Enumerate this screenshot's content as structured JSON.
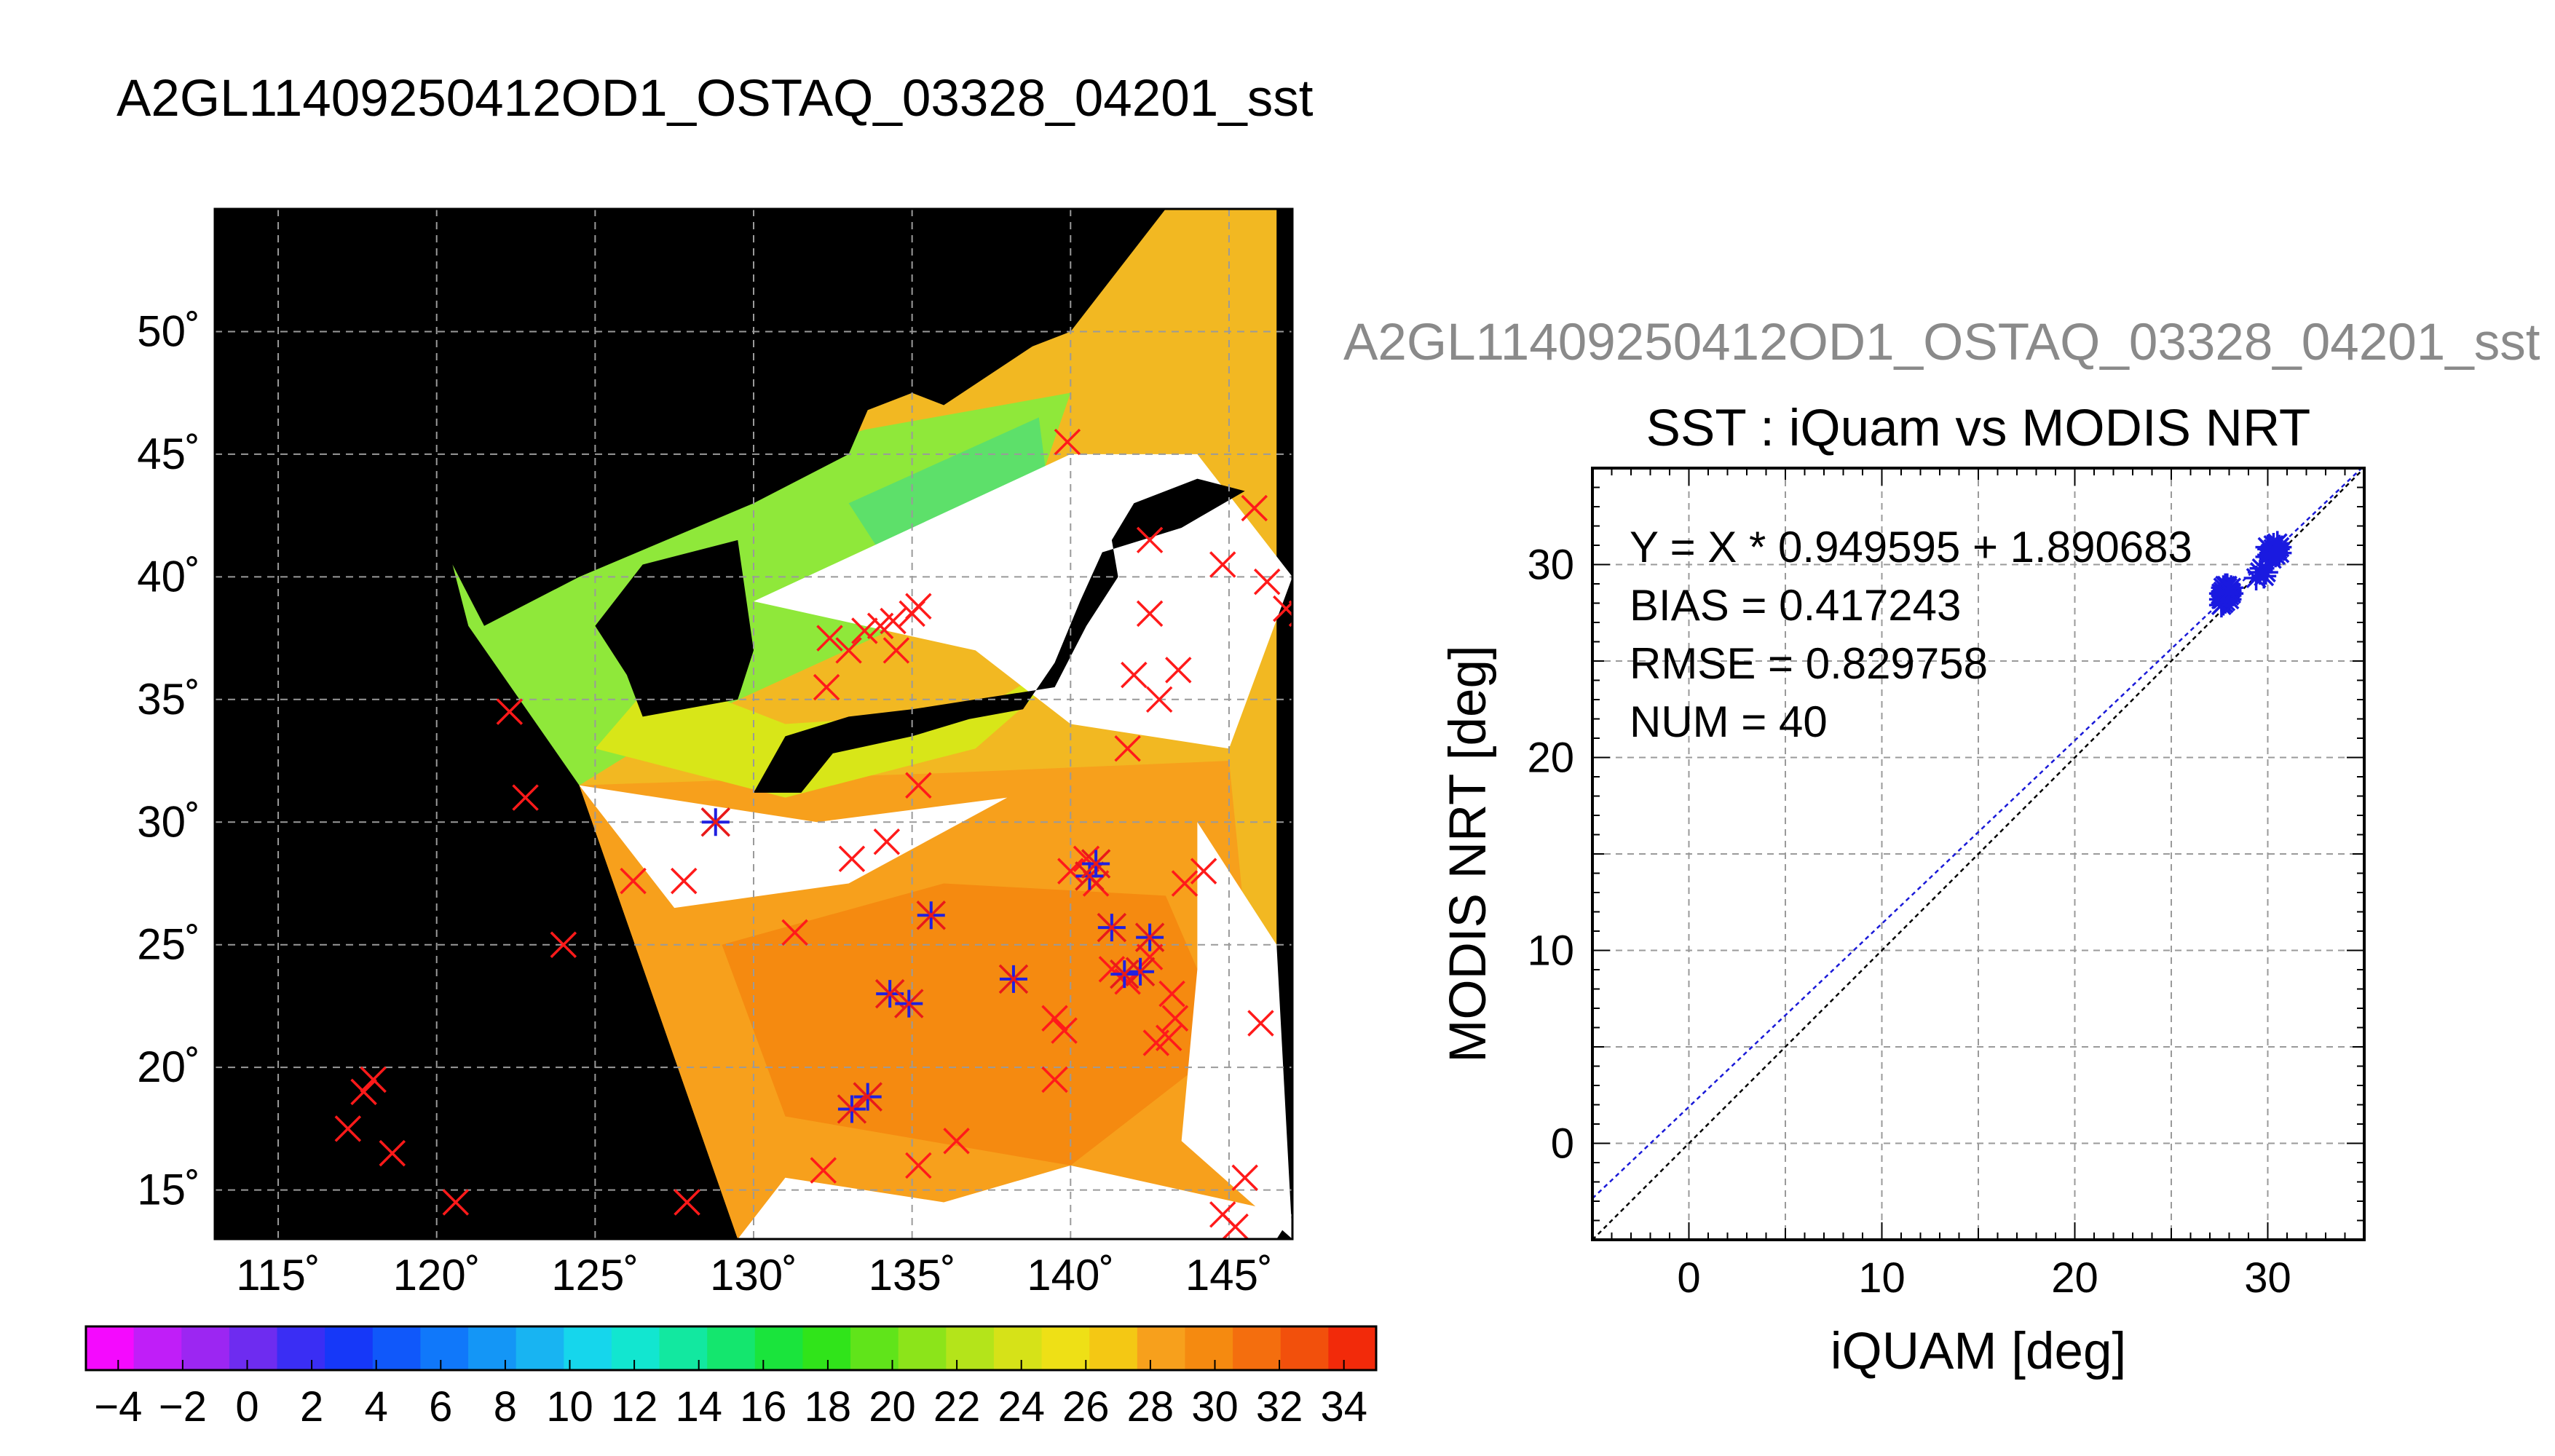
{
  "page": {
    "title": "A2GL11409250412OD1_OSTAQ_03328_04201_sst",
    "overline": "A2GL11409250412OD1_OSTAQ_03328_04201_sst"
  },
  "chart_data": [
    {
      "type": "map",
      "projection": "equirectangular",
      "xlim": [
        113,
        147
      ],
      "ylim": [
        13,
        55
      ],
      "grid": true,
      "x_ticks": [
        115,
        120,
        125,
        130,
        135,
        140,
        145
      ],
      "y_ticks": [
        15,
        20,
        25,
        30,
        35,
        40,
        45,
        50
      ],
      "x_tick_labels": [
        "115˚",
        "120˚",
        "125˚",
        "130˚",
        "135˚",
        "140˚",
        "145˚"
      ],
      "y_tick_labels": [
        "15˚",
        "20˚",
        "25˚",
        "30˚",
        "35˚",
        "40˚",
        "45˚",
        "50˚"
      ],
      "regions": [
        {
          "name": "swath-warm",
          "color": "#f7a01c",
          "polygon": [
            [
              124.5,
              31.5
            ],
            [
              129.5,
              13
            ],
            [
              146.5,
              13
            ],
            [
              145,
              32.5
            ],
            [
              136,
              32
            ]
          ]
        },
        {
          "name": "swath-hot",
          "color": "#f58a10",
          "polygon": [
            [
              129,
              25
            ],
            [
              131,
              18
            ],
            [
              140,
              16
            ],
            [
              145,
              21
            ],
            [
              143,
              27
            ],
            [
              136,
              27.5
            ]
          ]
        },
        {
          "name": "swath-cold",
          "color": "#8fe83a",
          "polygon": [
            [
              120.5,
              40.5
            ],
            [
              133.5,
              46
            ],
            [
              140,
              47.5
            ],
            [
              138,
              40
            ],
            [
              127,
              33.5
            ],
            [
              124.5,
              31.5
            ],
            [
              121,
              38
            ]
          ]
        },
        {
          "name": "swath-ice",
          "color": "#5de06a",
          "polygon": [
            [
              133,
              43
            ],
            [
              139,
              46.5
            ],
            [
              139.5,
              41.5
            ],
            [
              134,
              41
            ]
          ]
        },
        {
          "name": "swath-mid",
          "color": "#d8e618",
          "polygon": [
            [
              125,
              33
            ],
            [
              131,
              31
            ],
            [
              137,
              33
            ],
            [
              141,
              37.5
            ],
            [
              137,
              34.5
            ],
            [
              131,
              34
            ],
            [
              127,
              36
            ]
          ]
        },
        {
          "name": "swath-cloud",
          "color": "#ffffff",
          "polygon": [
            [
              130,
              39
            ],
            [
              140,
              45
            ],
            [
              144,
              45
            ],
            [
              147,
              40
            ],
            [
              145,
              33
            ],
            [
              140,
              34
            ],
            [
              137,
              37
            ]
          ]
        },
        {
          "name": "swath-cloud",
          "color": "#ffffff",
          "polygon": [
            [
              124.5,
              31.5
            ],
            [
              127.5,
              26.5
            ],
            [
              133,
              27.5
            ],
            [
              138,
              31
            ],
            [
              132,
              30
            ]
          ]
        },
        {
          "name": "swath-cloud",
          "color": "#ffffff",
          "polygon": [
            [
              129.5,
              13
            ],
            [
              131,
              15.5
            ],
            [
              136,
              14.5
            ],
            [
              140,
              16
            ],
            [
              147,
              14
            ],
            [
              146.5,
              13
            ]
          ]
        },
        {
          "name": "swath-cloud",
          "color": "#ffffff",
          "polygon": [
            [
              144,
              30
            ],
            [
              146.5,
              25
            ],
            [
              147,
              13
            ],
            [
              143.5,
              17
            ],
            [
              144,
              24
            ]
          ]
        },
        {
          "name": "land-korea",
          "color": "#000000",
          "polygon": [
            [
              125,
              38
            ],
            [
              126.5,
              40.5
            ],
            [
              129.5,
              41.5
            ],
            [
              130,
              37
            ],
            [
              129.5,
              35
            ],
            [
              126.5,
              34.3
            ],
            [
              126,
              36
            ]
          ]
        },
        {
          "name": "land-japan",
          "color": "#000000",
          "polygon": [
            [
              130,
              31.2
            ],
            [
              131,
              33.5
            ],
            [
              133,
              34.3
            ],
            [
              135,
              34.6
            ],
            [
              137,
              35
            ],
            [
              139.5,
              35.5
            ],
            [
              140.5,
              38
            ],
            [
              141.5,
              40
            ],
            [
              141.3,
              41.5
            ],
            [
              142,
              43
            ],
            [
              144,
              44
            ],
            [
              145.5,
              43.5
            ],
            [
              143.5,
              42
            ],
            [
              141,
              41
            ],
            [
              140.3,
              39
            ],
            [
              139.5,
              36.5
            ],
            [
              138.5,
              34.6
            ],
            [
              136.8,
              34.2
            ],
            [
              135,
              33.5
            ],
            [
              132.5,
              32.8
            ],
            [
              131.5,
              31.2
            ]
          ]
        },
        {
          "name": "land-china",
          "color": "#000000",
          "polygon": [
            [
              113,
              50
            ],
            [
              113,
              35
            ],
            [
              120.5,
              40.5
            ],
            [
              121.5,
              38
            ],
            [
              124.5,
              40
            ],
            [
              130,
              43
            ],
            [
              133,
              45
            ],
            [
              134,
              48
            ],
            [
              136,
              47
            ],
            [
              139.5,
              50
            ],
            [
              113,
              55
            ]
          ]
        }
      ],
      "swath_outline": [
        [
          124.5,
          31.5
        ],
        [
          120.5,
          40.5
        ],
        [
          128,
          44
        ],
        [
          140,
          50
        ],
        [
          143,
          55
        ],
        [
          146.5,
          55
        ],
        [
          146.5,
          13
        ],
        [
          129.5,
          13
        ]
      ],
      "markers": {
        "x_marks": [
          [
            122.3,
            34.5
          ],
          [
            122.8,
            31
          ],
          [
            124,
            25
          ],
          [
            126.2,
            27.6
          ],
          [
            127.8,
            27.6
          ],
          [
            128.8,
            30
          ],
          [
            127.9,
            14.5
          ],
          [
            120.6,
            14.5
          ],
          [
            117.2,
            17.5
          ],
          [
            117.7,
            19
          ],
          [
            118,
            19.5
          ],
          [
            118.6,
            16.5
          ],
          [
            131.3,
            25.5
          ],
          [
            132.3,
            35.5
          ],
          [
            132.4,
            37.5
          ],
          [
            133,
            37
          ],
          [
            133.5,
            37.8
          ],
          [
            134,
            38
          ],
          [
            134.4,
            38.2
          ],
          [
            135,
            38.5
          ],
          [
            135.2,
            38.8
          ],
          [
            134.5,
            37
          ],
          [
            135.2,
            31.5
          ],
          [
            133.1,
            28.5
          ],
          [
            134.2,
            29.2
          ],
          [
            140,
            28
          ],
          [
            140.5,
            28.5
          ],
          [
            140.8,
            27.5
          ],
          [
            141.3,
            24
          ],
          [
            141.8,
            23.5
          ],
          [
            142.5,
            24.5
          ],
          [
            143.2,
            23
          ],
          [
            142.7,
            21
          ],
          [
            143.1,
            21.2
          ],
          [
            143.3,
            22
          ],
          [
            139.5,
            22
          ],
          [
            139.5,
            19.5
          ],
          [
            139.8,
            21.5
          ],
          [
            143.6,
            27.5
          ],
          [
            144.2,
            28
          ],
          [
            145.5,
            15.5
          ],
          [
            144.8,
            14
          ],
          [
            145.2,
            13.5
          ],
          [
            135.2,
            16
          ],
          [
            136.4,
            17
          ],
          [
            132.2,
            15.8
          ],
          [
            139.9,
            45.5
          ],
          [
            142.5,
            41.5
          ],
          [
            145.8,
            42.8
          ],
          [
            144.8,
            40.5
          ],
          [
            146.2,
            39.8
          ],
          [
            146.8,
            38.7
          ],
          [
            147.3,
            38.5
          ],
          [
            142.5,
            38.5
          ],
          [
            142,
            36
          ],
          [
            143.4,
            36.2
          ],
          [
            142.8,
            35
          ],
          [
            141.8,
            33
          ],
          [
            146,
            21.8
          ]
        ],
        "star_marks": [
          [
            128.8,
            30
          ],
          [
            140.6,
            27.8
          ],
          [
            140.8,
            28.3
          ],
          [
            141.3,
            25.7
          ],
          [
            142.5,
            25.3
          ],
          [
            142.2,
            23.9
          ],
          [
            141.7,
            23.8
          ],
          [
            135.6,
            26.2
          ],
          [
            134.3,
            23
          ],
          [
            134.9,
            22.6
          ],
          [
            138.2,
            23.6
          ],
          [
            133.6,
            18.8
          ],
          [
            133.1,
            18.3
          ]
        ]
      }
    },
    {
      "type": "scatter",
      "title": "SST : iQuam vs MODIS NRT",
      "xlabel": "iQUAM [deg]",
      "ylabel": "MODIS NRT [deg]",
      "xlim": [
        -5,
        35
      ],
      "ylim": [
        -5,
        35
      ],
      "x_ticks": [
        0,
        10,
        20,
        30
      ],
      "y_ticks": [
        0,
        10,
        20,
        30
      ],
      "grid": true,
      "annotations": [
        "Y = X * 0.949595 + 1.890683",
        "BIAS = 0.417243",
        "RMSE = 0.829758",
        "NUM = 40"
      ],
      "fit": {
        "slope": 0.949595,
        "intercept": 1.890683
      },
      "points": [
        [
          27.6,
          28.5
        ],
        [
          27.7,
          28.0
        ],
        [
          27.8,
          28.7
        ],
        [
          27.9,
          28.3
        ],
        [
          27.7,
          28.6
        ],
        [
          27.9,
          28.8
        ],
        [
          28.0,
          28.4
        ],
        [
          27.8,
          28.1
        ],
        [
          27.6,
          28.2
        ],
        [
          28.0,
          28.7
        ],
        [
          27.9,
          28.6
        ],
        [
          27.7,
          28.4
        ],
        [
          28.1,
          28.5
        ],
        [
          27.8,
          28.9
        ],
        [
          27.6,
          27.9
        ],
        [
          28.0,
          28.2
        ],
        [
          29.4,
          29.3
        ],
        [
          29.6,
          29.6
        ],
        [
          29.8,
          29.4
        ],
        [
          29.7,
          29.8
        ],
        [
          30.0,
          30.4
        ],
        [
          30.1,
          30.8
        ],
        [
          30.2,
          30.6
        ],
        [
          30.3,
          31.0
        ],
        [
          30.4,
          30.7
        ],
        [
          30.5,
          31.1
        ],
        [
          30.6,
          30.9
        ],
        [
          30.2,
          30.3
        ],
        [
          30.4,
          30.5
        ],
        [
          30.0,
          30.9
        ],
        [
          30.6,
          30.6
        ],
        [
          30.3,
          30.8
        ],
        [
          27.9,
          28.9
        ],
        [
          28.1,
          28.8
        ],
        [
          27.7,
          28.8
        ],
        [
          29.9,
          29.6
        ],
        [
          30.5,
          30.8
        ],
        [
          30.1,
          30.5
        ],
        [
          27.8,
          28.5
        ],
        [
          28.0,
          28.6
        ]
      ]
    }
  ],
  "colorbar": {
    "min": -5,
    "max": 35,
    "tick_labels": [
      "−4",
      "−2",
      "0",
      "2",
      "4",
      "6",
      "8",
      "10",
      "12",
      "14",
      "16",
      "18",
      "20",
      "22",
      "24",
      "26",
      "28",
      "30",
      "32",
      "34"
    ],
    "colors": [
      "#f40afe",
      "#c01ef8",
      "#9c26f2",
      "#6e2cf0",
      "#3a2ef4",
      "#1638f8",
      "#1058fa",
      "#1078fa",
      "#1496f6",
      "#18b4f2",
      "#16d6ec",
      "#12e6d0",
      "#12e8a0",
      "#14e66e",
      "#1ae43c",
      "#30e41a",
      "#60e41a",
      "#8ce41a",
      "#b4e41a",
      "#d6e218",
      "#eee016",
      "#f4c814",
      "#f7a01c",
      "#f58a10",
      "#f46e0e",
      "#f2500c",
      "#f22a0a"
    ]
  }
}
